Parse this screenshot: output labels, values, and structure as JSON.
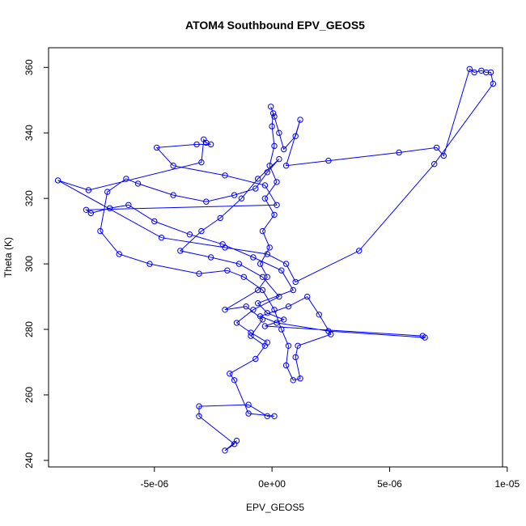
{
  "chart_data": {
    "type": "scatter",
    "title": "ATOM4 Southbound EPV_GEOS5",
    "xlabel": "EPV_GEOS5",
    "ylabel": "Theta (K)",
    "xlim": [
      -9.5e-06,
      9.8e-06
    ],
    "ylim": [
      238,
      366
    ],
    "x_ticks": [
      {
        "value": -5e-06,
        "label": "-5e-06"
      },
      {
        "value": 0,
        "label": "0e+00"
      },
      {
        "value": 5e-06,
        "label": "5e-06"
      },
      {
        "value": 1e-05,
        "label": "1e-05"
      }
    ],
    "y_ticks": [
      {
        "value": 240,
        "label": "240"
      },
      {
        "value": 260,
        "label": "260"
      },
      {
        "value": 280,
        "label": "280"
      },
      {
        "value": 300,
        "label": "300"
      },
      {
        "value": 320,
        "label": "320"
      },
      {
        "value": 340,
        "label": "340"
      },
      {
        "value": 360,
        "label": "360"
      }
    ],
    "grid": false,
    "series": [
      {
        "color": "#0000ff",
        "marker": "open-circle",
        "line": true,
        "points": [
          [
            -1.5e-06,
            246
          ],
          [
            -2e-06,
            243
          ],
          [
            -1.6e-06,
            245
          ],
          [
            -3.1e-06,
            253.5
          ],
          [
            -3.1e-06,
            256.5
          ],
          [
            -1e-06,
            257
          ],
          [
            -2e-07,
            253.5
          ],
          [
            1e-07,
            253.5
          ],
          [
            -1e-06,
            254.3
          ],
          [
            -1.6e-06,
            264.5
          ],
          [
            -1.8e-06,
            266.5
          ],
          [
            -7e-07,
            271
          ],
          [
            -3e-07,
            275
          ],
          [
            -9e-07,
            278
          ],
          [
            -4e-07,
            283
          ],
          [
            -1.1e-06,
            287
          ],
          [
            -2e-06,
            286
          ],
          [
            -6e-07,
            292
          ],
          [
            -2e-07,
            296
          ],
          [
            -5e-07,
            300
          ],
          [
            -1e-07,
            305
          ],
          [
            -4e-07,
            310
          ],
          [
            1e-07,
            315
          ],
          [
            -3e-07,
            320
          ],
          [
            2e-07,
            325
          ],
          [
            -1e-07,
            330
          ],
          [
            1e-07,
            336
          ],
          [
            0.0,
            342
          ],
          [
            5e-08,
            346
          ],
          [
            -5e-08,
            348
          ],
          [
            1e-07,
            345
          ],
          [
            3e-07,
            340
          ],
          [
            5e-07,
            335
          ],
          [
            1e-06,
            339
          ],
          [
            1.2e-06,
            344
          ],
          [
            6e-07,
            330
          ],
          [
            2.4e-06,
            331.5
          ],
          [
            5.4e-06,
            334
          ],
          [
            7e-06,
            335.5
          ],
          [
            7.3e-06,
            333
          ],
          [
            8.4e-06,
            359.5
          ],
          [
            8.6e-06,
            358.5
          ],
          [
            8.9e-06,
            359
          ],
          [
            9.1e-06,
            358.5
          ],
          [
            9.3e-06,
            358.5
          ],
          [
            9.4e-06,
            355
          ],
          [
            6.9e-06,
            330.5
          ],
          [
            3.7e-06,
            304
          ],
          [
            1e-06,
            294.5
          ],
          [
            6e-07,
            300
          ],
          [
            -2e-07,
            303
          ],
          [
            -2e-06,
            305
          ],
          [
            -4.7e-06,
            308
          ],
          [
            -9.1e-06,
            325.5
          ],
          [
            -7.8e-06,
            322.5
          ],
          [
            -3e-06,
            331
          ],
          [
            -2.9e-06,
            338
          ],
          [
            -2.8e-06,
            337
          ],
          [
            -2.6e-06,
            336.5
          ],
          [
            -3.2e-06,
            336.5
          ],
          [
            -4.9e-06,
            335.5
          ],
          [
            -4.2e-06,
            330
          ],
          [
            -2e-06,
            327
          ],
          [
            -3e-07,
            324
          ],
          [
            2e-07,
            318
          ],
          [
            -7.9e-06,
            316.5
          ],
          [
            -7.7e-06,
            315.5
          ],
          [
            -6.9e-06,
            317
          ],
          [
            -6.1e-06,
            318
          ],
          [
            -5e-06,
            313
          ],
          [
            -3.5e-06,
            309
          ],
          [
            -2.1e-06,
            306
          ],
          [
            -8e-07,
            302
          ],
          [
            4e-07,
            298
          ],
          [
            9e-07,
            292
          ],
          [
            -6e-07,
            288
          ],
          [
            -2e-07,
            285
          ],
          [
            5e-07,
            283
          ],
          [
            -3e-07,
            281
          ],
          [
            6.4e-06,
            278
          ],
          [
            6.5e-06,
            277.5
          ],
          [
            2.4e-06,
            279.5
          ],
          [
            2e-07,
            282
          ],
          [
            -5e-07,
            284
          ],
          [
            7e-07,
            287
          ],
          [
            1.5e-06,
            290
          ],
          [
            2e-06,
            284.5
          ],
          [
            2.5e-06,
            278.5
          ],
          [
            1.1e-06,
            275
          ],
          [
            1e-06,
            271.5
          ],
          [
            1.2e-06,
            265
          ],
          [
            9e-07,
            264.5
          ],
          [
            6e-07,
            269
          ],
          [
            7e-07,
            275
          ],
          [
            4e-07,
            280
          ],
          [
            1e-07,
            286
          ],
          [
            -4e-07,
            292
          ],
          [
            -1.2e-06,
            296
          ],
          [
            -1.9e-06,
            298
          ],
          [
            -3.1e-06,
            297
          ],
          [
            -5.2e-06,
            300
          ],
          [
            -6.5e-06,
            303
          ],
          [
            -7.3e-06,
            310
          ],
          [
            -7e-06,
            322
          ],
          [
            -6.2e-06,
            326
          ],
          [
            -5.7e-06,
            324.5
          ],
          [
            -4.2e-06,
            321
          ],
          [
            -2.8e-06,
            319
          ],
          [
            -1.6e-06,
            321
          ],
          [
            -7e-07,
            323
          ],
          [
            -2e-07,
            328
          ],
          [
            3e-07,
            332
          ],
          [
            -6e-07,
            326
          ],
          [
            -1.3e-06,
            320
          ],
          [
            -2.2e-06,
            314
          ],
          [
            -3e-06,
            310
          ],
          [
            -3.9e-06,
            304
          ],
          [
            -2.6e-06,
            302
          ],
          [
            -1.4e-06,
            300
          ],
          [
            -4e-07,
            296
          ],
          [
            3e-07,
            290
          ],
          [
            -8e-07,
            286
          ],
          [
            -1.5e-06,
            282
          ],
          [
            -9e-07,
            279
          ],
          [
            -2e-07,
            276
          ]
        ]
      }
    ]
  }
}
